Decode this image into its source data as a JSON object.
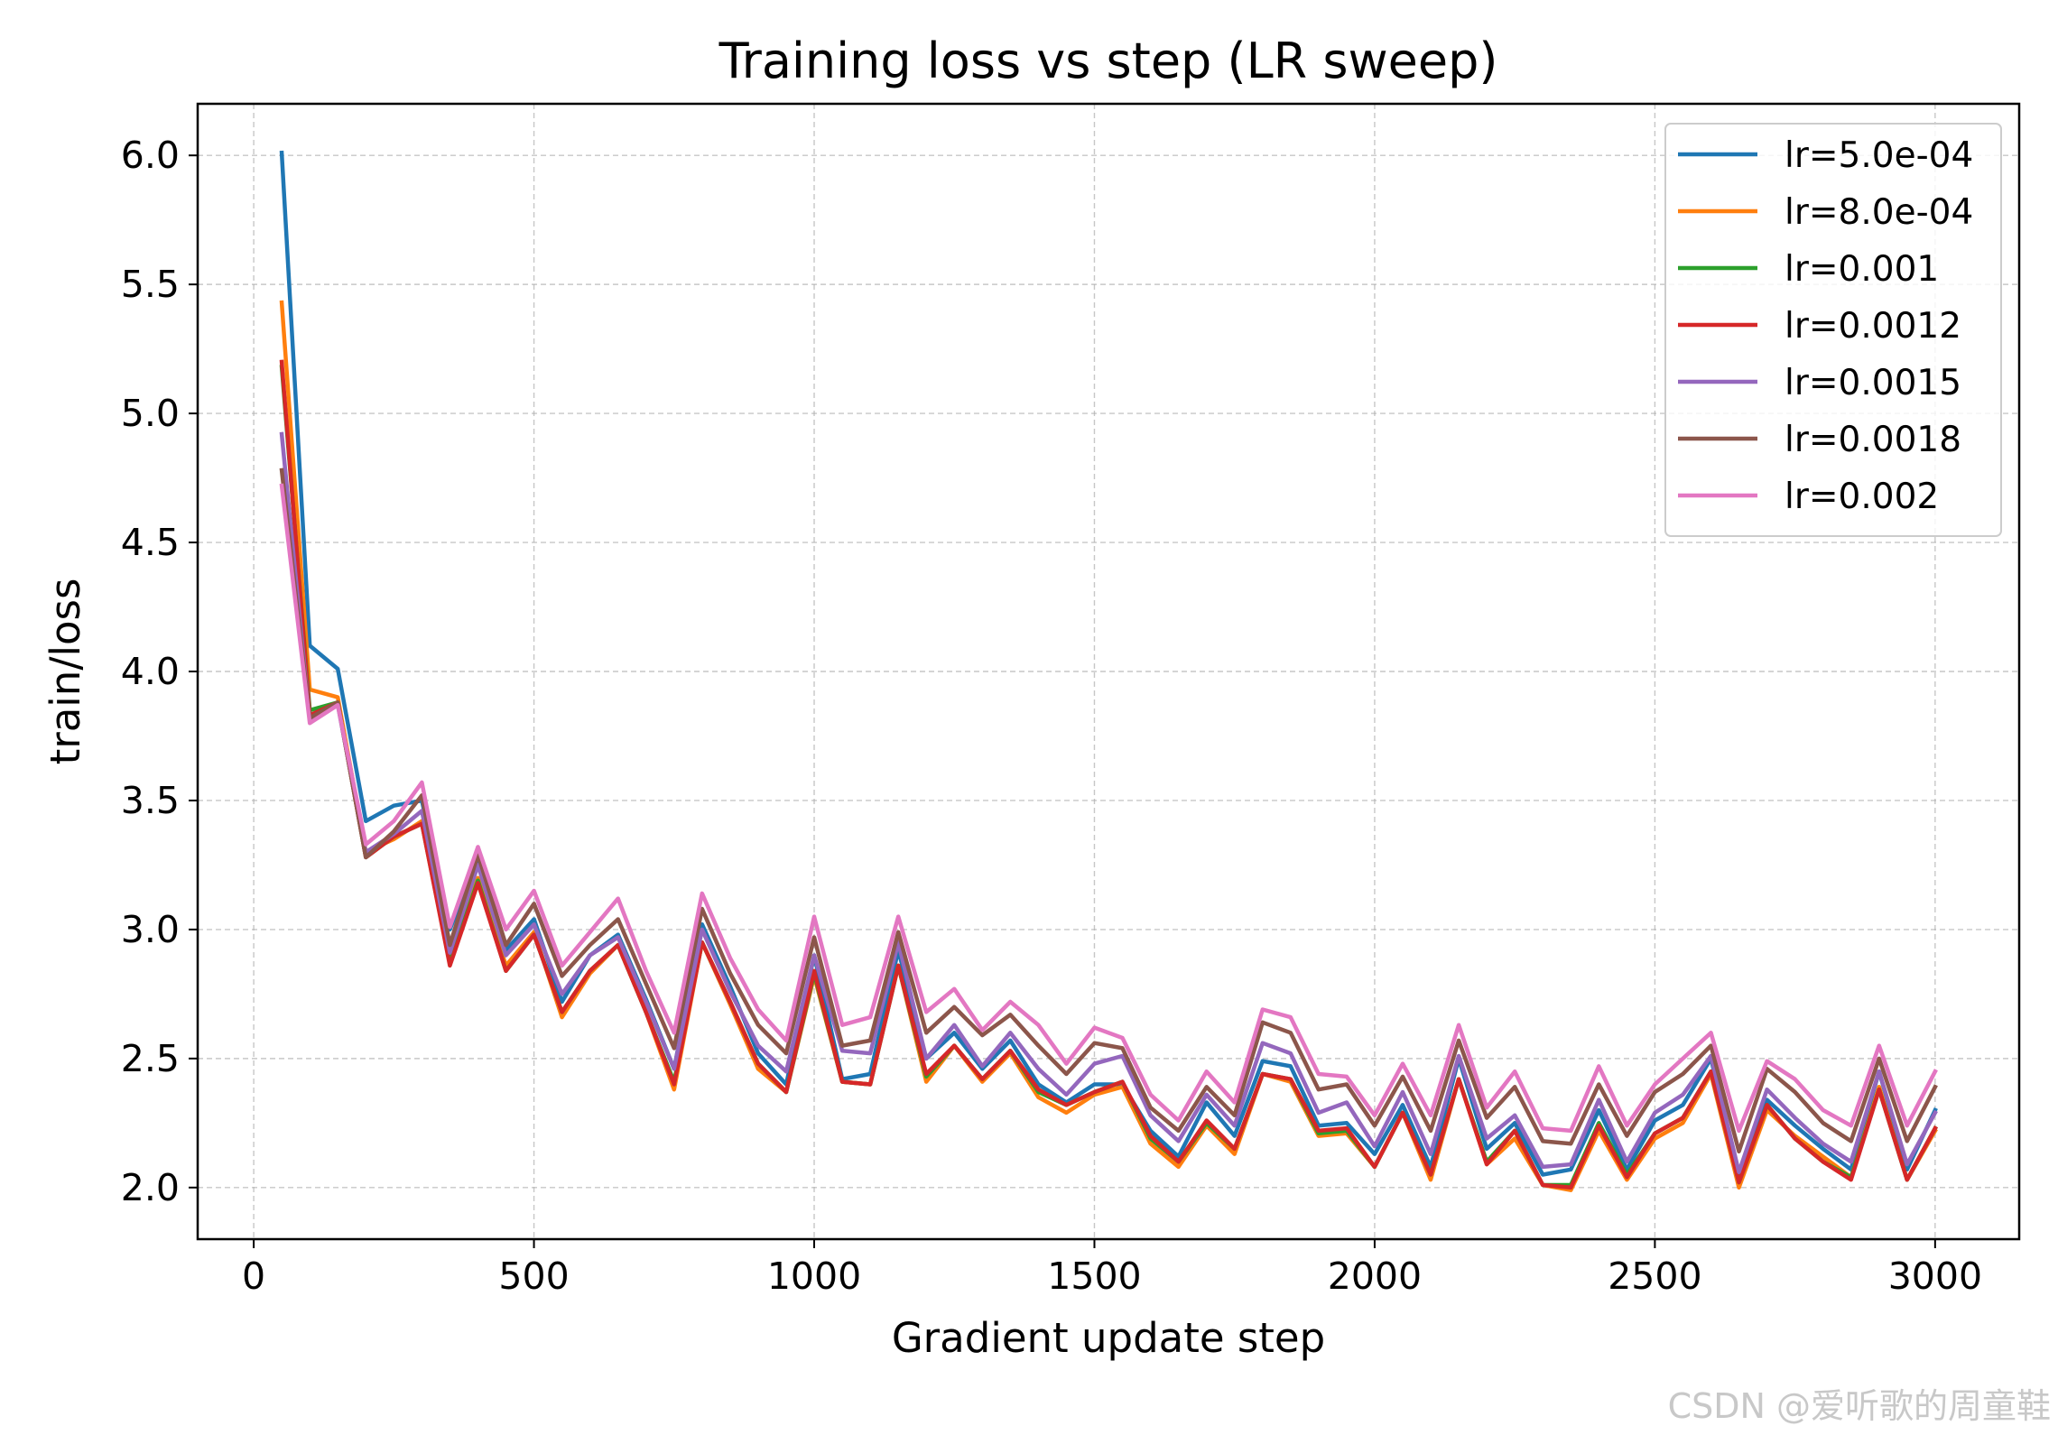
{
  "chart_data": {
    "type": "line",
    "title": "Training loss vs step (LR sweep)",
    "xlabel": "Gradient update step",
    "ylabel": "train/loss",
    "xlim": [
      -100,
      3150
    ],
    "ylim": [
      1.8,
      6.2
    ],
    "xticks": [
      0,
      500,
      1000,
      1500,
      2000,
      2500,
      3000
    ],
    "yticks": [
      2.0,
      2.5,
      3.0,
      3.5,
      4.0,
      4.5,
      5.0,
      5.5,
      6.0
    ],
    "ytick_labels": [
      "2.0",
      "2.5",
      "3.0",
      "3.5",
      "4.0",
      "4.5",
      "5.0",
      "5.5",
      "6.0"
    ],
    "grid": true,
    "legend_location": "top-right",
    "x": [
      50,
      100,
      150,
      200,
      250,
      300,
      350,
      400,
      450,
      500,
      550,
      600,
      650,
      700,
      750,
      800,
      850,
      900,
      950,
      1000,
      1050,
      1100,
      1150,
      1200,
      1250,
      1300,
      1350,
      1400,
      1450,
      1500,
      1550,
      1600,
      1650,
      1700,
      1750,
      1800,
      1850,
      1900,
      1950,
      2000,
      2050,
      2100,
      2150,
      2200,
      2250,
      2300,
      2350,
      2400,
      2450,
      2500,
      2550,
      2600,
      2650,
      2700,
      2750,
      2800,
      2850,
      2900,
      2950,
      3000
    ],
    "series": [
      {
        "name": "lr=5.0e-04",
        "color": "#1f77b4",
        "values": [
          6.01,
          4.1,
          4.01,
          3.42,
          3.48,
          3.5,
          3.0,
          3.28,
          2.92,
          3.04,
          2.72,
          2.9,
          2.98,
          2.73,
          2.46,
          3.02,
          2.78,
          2.52,
          2.4,
          2.9,
          2.42,
          2.44,
          2.92,
          2.5,
          2.6,
          2.46,
          2.57,
          2.4,
          2.33,
          2.4,
          2.4,
          2.22,
          2.12,
          2.33,
          2.2,
          2.49,
          2.47,
          2.24,
          2.25,
          2.13,
          2.32,
          2.08,
          2.5,
          2.15,
          2.25,
          2.05,
          2.07,
          2.3,
          2.07,
          2.26,
          2.32,
          2.5,
          2.05,
          2.34,
          2.24,
          2.15,
          2.07,
          2.45,
          2.07,
          2.3
        ]
      },
      {
        "name": "lr=8.0e-04",
        "color": "#ff7f0e",
        "values": [
          5.43,
          3.93,
          3.9,
          3.3,
          3.35,
          3.42,
          2.89,
          3.2,
          2.86,
          2.99,
          2.66,
          2.83,
          2.94,
          2.68,
          2.38,
          2.95,
          2.71,
          2.46,
          2.37,
          2.82,
          2.41,
          2.4,
          2.86,
          2.41,
          2.55,
          2.41,
          2.52,
          2.35,
          2.29,
          2.36,
          2.39,
          2.17,
          2.08,
          2.24,
          2.13,
          2.44,
          2.41,
          2.2,
          2.21,
          2.08,
          2.29,
          2.03,
          2.42,
          2.09,
          2.19,
          2.01,
          1.99,
          2.22,
          2.03,
          2.19,
          2.25,
          2.44,
          2.0,
          2.3,
          2.2,
          2.12,
          2.04,
          2.39,
          2.03,
          2.22
        ]
      },
      {
        "name": "lr=0.001",
        "color": "#2ca02c",
        "values": [
          5.18,
          3.85,
          3.88,
          3.28,
          3.36,
          3.41,
          2.87,
          3.19,
          2.84,
          2.98,
          2.68,
          2.84,
          2.94,
          2.68,
          2.41,
          2.95,
          2.72,
          2.48,
          2.37,
          2.83,
          2.41,
          2.4,
          2.86,
          2.43,
          2.55,
          2.42,
          2.53,
          2.37,
          2.32,
          2.37,
          2.41,
          2.19,
          2.1,
          2.25,
          2.15,
          2.44,
          2.42,
          2.21,
          2.22,
          2.08,
          2.29,
          2.05,
          2.42,
          2.1,
          2.22,
          2.01,
          2.01,
          2.25,
          2.05,
          2.21,
          2.27,
          2.45,
          2.02,
          2.32,
          2.19,
          2.1,
          2.04,
          2.38,
          2.03,
          2.23
        ]
      },
      {
        "name": "lr=0.0012",
        "color": "#d62728",
        "values": [
          5.2,
          3.83,
          3.88,
          3.28,
          3.36,
          3.41,
          2.86,
          3.18,
          2.84,
          2.98,
          2.68,
          2.84,
          2.94,
          2.68,
          2.4,
          2.95,
          2.72,
          2.48,
          2.37,
          2.84,
          2.41,
          2.4,
          2.86,
          2.44,
          2.55,
          2.42,
          2.53,
          2.38,
          2.32,
          2.37,
          2.41,
          2.2,
          2.1,
          2.26,
          2.15,
          2.44,
          2.42,
          2.22,
          2.23,
          2.08,
          2.29,
          2.05,
          2.42,
          2.09,
          2.22,
          2.01,
          2.0,
          2.24,
          2.04,
          2.21,
          2.27,
          2.45,
          2.02,
          2.32,
          2.19,
          2.1,
          2.03,
          2.38,
          2.03,
          2.23
        ]
      },
      {
        "name": "lr=0.0015",
        "color": "#9467bd",
        "values": [
          4.92,
          3.81,
          3.87,
          3.3,
          3.37,
          3.46,
          2.91,
          3.25,
          2.9,
          3.02,
          2.75,
          2.9,
          2.97,
          2.72,
          2.46,
          3.0,
          2.76,
          2.55,
          2.45,
          2.9,
          2.53,
          2.52,
          2.95,
          2.5,
          2.63,
          2.47,
          2.6,
          2.46,
          2.36,
          2.48,
          2.51,
          2.28,
          2.18,
          2.36,
          2.24,
          2.56,
          2.52,
          2.29,
          2.33,
          2.16,
          2.37,
          2.13,
          2.51,
          2.19,
          2.28,
          2.08,
          2.09,
          2.34,
          2.1,
          2.29,
          2.36,
          2.51,
          2.06,
          2.38,
          2.27,
          2.17,
          2.1,
          2.45,
          2.09,
          2.29
        ]
      },
      {
        "name": "lr=0.0018",
        "color": "#8c564b",
        "values": [
          4.78,
          3.82,
          3.88,
          3.28,
          3.38,
          3.52,
          2.94,
          3.29,
          2.94,
          3.1,
          2.82,
          2.94,
          3.04,
          2.79,
          2.54,
          3.08,
          2.83,
          2.63,
          2.52,
          2.97,
          2.55,
          2.57,
          2.99,
          2.6,
          2.7,
          2.59,
          2.67,
          2.55,
          2.44,
          2.56,
          2.54,
          2.31,
          2.22,
          2.39,
          2.28,
          2.64,
          2.6,
          2.38,
          2.4,
          2.24,
          2.43,
          2.22,
          2.57,
          2.27,
          2.39,
          2.18,
          2.17,
          2.4,
          2.2,
          2.37,
          2.44,
          2.55,
          2.14,
          2.46,
          2.37,
          2.25,
          2.18,
          2.5,
          2.18,
          2.39
        ]
      },
      {
        "name": "lr=0.002",
        "color": "#e377c2",
        "values": [
          4.72,
          3.8,
          3.87,
          3.33,
          3.42,
          3.57,
          3.01,
          3.32,
          3.0,
          3.15,
          2.86,
          2.99,
          3.12,
          2.84,
          2.6,
          3.14,
          2.89,
          2.69,
          2.57,
          3.05,
          2.63,
          2.66,
          3.05,
          2.68,
          2.77,
          2.61,
          2.72,
          2.63,
          2.48,
          2.62,
          2.58,
          2.36,
          2.26,
          2.45,
          2.33,
          2.69,
          2.66,
          2.44,
          2.43,
          2.28,
          2.48,
          2.28,
          2.63,
          2.31,
          2.45,
          2.23,
          2.22,
          2.47,
          2.24,
          2.4,
          2.5,
          2.6,
          2.22,
          2.49,
          2.42,
          2.3,
          2.24,
          2.55,
          2.24,
          2.45
        ]
      }
    ]
  },
  "watermark": "CSDN @爱听歌的周童鞋"
}
